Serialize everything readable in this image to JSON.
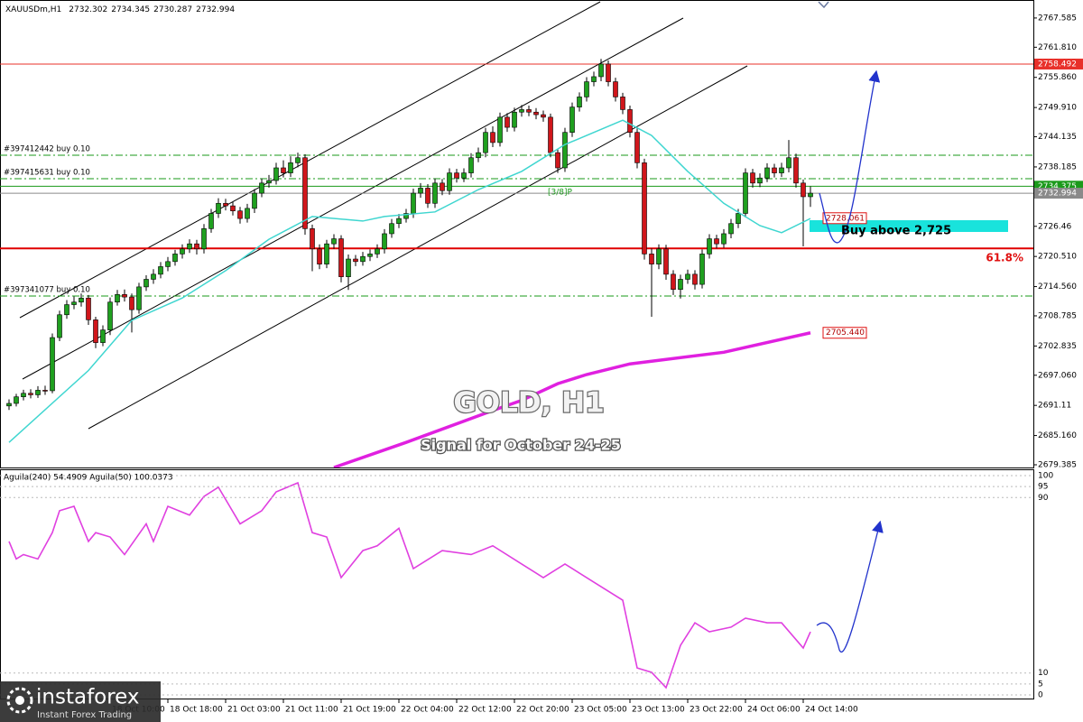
{
  "chart_data": {
    "type": "candlestick",
    "symbol": "XAUUSDm,H1",
    "title": "GOLD, H1",
    "subtitle": "Signal for October 24-25",
    "annotations": [
      "[3/8]P",
      "Buy above 2,725",
      "61.8%"
    ],
    "watermark": {
      "brand": "instaforex",
      "tagline": "Instant Forex Trading"
    },
    "up_color": "#1fa01f",
    "down_color": "#d0161b",
    "ylim": [
      2678.85,
      2770.6
    ],
    "yticks": [
      2767.585,
      {
        "value": 2761.81,
        "label": "2761.810"
      },
      {
        "value": 2755.86,
        "label": "2755.860"
      },
      {
        "value": 2749.91,
        "label": "2749.910"
      },
      2744.135,
      2738.185,
      2726.46,
      {
        "value": 2720.51,
        "label": "2720.510"
      },
      {
        "value": 2714.56,
        "label": "2714.560"
      },
      2708.785,
      2702.835,
      {
        "value": 2697.06,
        "label": "2697.060"
      },
      2691.11,
      {
        "value": 2685.16,
        "label": "2685.160"
      },
      2679.385
    ],
    "xticks": [
      {
        "value": 14,
        "label": "18 Oct 10:00"
      },
      {
        "value": 22,
        "label": "18 Oct 18:00"
      },
      {
        "value": 30,
        "label": "21 Oct 03:00"
      },
      {
        "value": 38,
        "label": "21 Oct 11:00"
      },
      {
        "value": 46,
        "label": "21 Oct 19:00"
      },
      {
        "value": 54,
        "label": "22 Oct 04:00"
      },
      {
        "value": 62,
        "label": "22 Oct 12:00"
      },
      {
        "value": 70,
        "label": "22 Oct 20:00"
      },
      {
        "value": 78,
        "label": "23 Oct 05:00"
      },
      {
        "value": 86,
        "label": "23 Oct 13:00"
      },
      {
        "value": 94,
        "label": "23 Oct 22:00"
      },
      {
        "value": 102,
        "label": "24 Oct 06:00"
      },
      {
        "value": 110,
        "label": "24 Oct 14:00"
      }
    ],
    "open": [
      2691.0,
      2691.5,
      2692.8,
      2693.5,
      2693.2,
      2694.1,
      2694.0,
      2704.5,
      2709.0,
      2711.0,
      2711.5,
      2712.3,
      2708.0,
      2703.5,
      2706.0,
      2711.5,
      2713.0,
      2712.5,
      2710.0,
      2714.5,
      2716.0,
      2717.0,
      2718.5,
      2719.5,
      2721.0,
      2722.0,
      2723.0,
      2722.0,
      2726.0,
      2729.0,
      2731.0,
      2730.5,
      2729.5,
      2728.0,
      2730.0,
      2733.0,
      2735.0,
      2735.5,
      2738.0,
      2737.0,
      2739.0,
      2740.0,
      2726.0,
      2722.0,
      2719.0,
      2723.0,
      2724.0,
      2716.5,
      2720.0,
      2719.5,
      2720.5,
      2721.0,
      2722.0,
      2725.0,
      2727.0,
      2728.0,
      2729.0,
      2733.0,
      2734.0,
      2731.0,
      2735.0,
      2733.5,
      2737.0,
      2736.0,
      2737.0,
      2740.0,
      2741.0,
      2745.0,
      2743.0,
      2748.0,
      2746.0,
      2749.0,
      2749.5,
      2749.0,
      2748.5,
      2748.0,
      2741.0,
      2738.0,
      2745.0,
      2750.0,
      2752.0,
      2755.0,
      2756.0,
      2758.5,
      2755.0,
      2752.0,
      2749.5,
      2745.0,
      2739.0,
      2721.0,
      2719.0,
      2722.0,
      2717.0,
      2714.0,
      2716.0,
      2717.0,
      2715.0,
      2721.0,
      2724.0,
      2723.0,
      2725.0,
      2727.0,
      2729.0,
      2737.0,
      2735.0,
      2736.0,
      2738.0,
      2737.0,
      2738.0,
      2740.0,
      2735.0,
      2732.302
    ],
    "high": [
      2692.3,
      2693.4,
      2694.2,
      2694.3,
      2694.9,
      2695.0,
      2705.3,
      2709.8,
      2711.9,
      2712.6,
      2713.2,
      2712.9,
      2708.6,
      2706.9,
      2712.4,
      2713.9,
      2714.0,
      2713.2,
      2715.3,
      2716.8,
      2718.0,
      2719.4,
      2720.4,
      2721.8,
      2722.9,
      2723.9,
      2723.8,
      2726.9,
      2729.9,
      2732.0,
      2731.9,
      2731.3,
      2730.3,
      2730.9,
      2733.8,
      2735.9,
      2736.6,
      2739.0,
      2739.5,
      2740.3,
      2741.0,
      2740.7,
      2726.8,
      2722.9,
      2723.8,
      2724.9,
      2724.7,
      2720.9,
      2720.8,
      2721.4,
      2721.9,
      2722.9,
      2725.9,
      2727.9,
      2728.9,
      2729.9,
      2733.9,
      2735.0,
      2734.8,
      2735.9,
      2735.8,
      2737.9,
      2737.8,
      2737.9,
      2740.9,
      2742.0,
      2745.9,
      2746.2,
      2748.9,
      2748.8,
      2749.9,
      2750.4,
      2750.3,
      2749.8,
      2749.3,
      2748.7,
      2741.8,
      2745.9,
      2750.9,
      2752.9,
      2755.9,
      2757.0,
      2759.5,
      2759.2,
      2755.8,
      2752.8,
      2750.3,
      2745.8,
      2739.8,
      2722.1,
      2722.9,
      2722.8,
      2717.8,
      2716.9,
      2717.9,
      2717.8,
      2721.9,
      2724.9,
      2724.8,
      2725.9,
      2727.9,
      2729.9,
      2737.9,
      2737.8,
      2736.9,
      2738.9,
      2738.8,
      2739.0,
      2743.5,
      2740.8,
      2735.7,
      2734.345
    ],
    "low": [
      2690.2,
      2690.9,
      2692.1,
      2692.5,
      2692.6,
      2693.2,
      2693.5,
      2703.8,
      2708.2,
      2710.1,
      2710.6,
      2707.0,
      2702.4,
      2702.8,
      2705.0,
      2710.8,
      2711.6,
      2705.5,
      2709.2,
      2713.7,
      2715.1,
      2716.2,
      2717.6,
      2718.7,
      2720.1,
      2721.2,
      2720.9,
      2721.1,
      2725.2,
      2728.1,
      2729.6,
      2728.6,
      2727.0,
      2727.2,
      2729.1,
      2732.2,
      2734.1,
      2734.7,
      2736.1,
      2736.2,
      2738.1,
      2724.8,
      2717.6,
      2718.0,
      2718.2,
      2722.0,
      2715.4,
      2713.9,
      2718.6,
      2718.7,
      2719.6,
      2720.2,
      2721.1,
      2724.2,
      2726.1,
      2727.2,
      2728.1,
      2732.1,
      2730.1,
      2730.1,
      2732.6,
      2732.7,
      2735.1,
      2735.2,
      2736.1,
      2739.1,
      2740.1,
      2742.1,
      2742.2,
      2745.1,
      2745.2,
      2748.1,
      2748.2,
      2747.6,
      2747.1,
      2740.1,
      2737.0,
      2737.2,
      2744.1,
      2749.1,
      2751.1,
      2754.1,
      2755.1,
      2754.1,
      2751.1,
      2748.6,
      2744.0,
      2737.9,
      2719.9,
      2708.6,
      2718.0,
      2715.9,
      2712.9,
      2712.2,
      2715.1,
      2714.0,
      2714.2,
      2720.1,
      2722.1,
      2722.2,
      2724.1,
      2726.1,
      2728.2,
      2734.1,
      2734.2,
      2735.2,
      2736.1,
      2736.2,
      2737.1,
      2734.1,
      2722.5,
      2730.287
    ],
    "close": [
      2691.5,
      2692.8,
      2693.5,
      2693.2,
      2694.1,
      2694.0,
      2704.5,
      2709.0,
      2711.0,
      2711.5,
      2712.3,
      2708.0,
      2703.5,
      2706.0,
      2711.5,
      2713.0,
      2712.5,
      2710.0,
      2714.5,
      2716.0,
      2717.0,
      2718.5,
      2719.5,
      2721.0,
      2722.0,
      2723.0,
      2722.0,
      2726.0,
      2729.0,
      2731.0,
      2730.5,
      2729.5,
      2728.0,
      2730.0,
      2733.0,
      2735.0,
      2735.5,
      2738.0,
      2737.0,
      2739.0,
      2740.0,
      2726.0,
      2722.0,
      2719.0,
      2723.0,
      2724.0,
      2716.5,
      2720.0,
      2719.5,
      2720.5,
      2721.0,
      2722.0,
      2725.0,
      2727.0,
      2728.0,
      2729.0,
      2733.0,
      2734.0,
      2731.0,
      2735.0,
      2733.5,
      2737.0,
      2736.0,
      2737.0,
      2740.0,
      2741.0,
      2745.0,
      2743.0,
      2748.0,
      2746.0,
      2749.0,
      2749.5,
      2749.0,
      2748.5,
      2748.0,
      2741.0,
      2738.0,
      2745.0,
      2750.0,
      2752.0,
      2755.0,
      2756.0,
      2758.5,
      2755.0,
      2752.0,
      2749.5,
      2745.0,
      2739.0,
      2721.0,
      2719.0,
      2722.0,
      2717.0,
      2714.0,
      2716.0,
      2717.0,
      2715.0,
      2721.0,
      2724.0,
      2723.0,
      2725.0,
      2727.0,
      2729.0,
      2737.0,
      2735.0,
      2736.0,
      2738.0,
      2737.0,
      2738.0,
      2740.0,
      2735.0,
      2732.302,
      2732.994
    ],
    "lines": [
      {
        "color": "#3fd6d0",
        "width": 1.5,
        "x": [
          0,
          11,
          17,
          24,
          30,
          36,
          42,
          49,
          52,
          59,
          65,
          71,
          77,
          85,
          89,
          94,
          99,
          104,
          107,
          111
        ],
        "values": [
          2683.8,
          2698.0,
          2707.9,
          2712.3,
          2717.7,
          2723.9,
          2728.4,
          2727.5,
          2728.4,
          2729.3,
          2733.7,
          2737.3,
          2742.6,
          2747.4,
          2744.4,
          2737.3,
          2731.0,
          2726.6,
          2725.2,
          2728.0
        ]
      },
      {
        "color": "#e020e0",
        "width": 3.5,
        "x": [
          45,
          55,
          67,
          71,
          76,
          80,
          86,
          99,
          111
        ],
        "values": [
          2678.85,
          2683.8,
          2690.1,
          2692.1,
          2695.4,
          2697.2,
          2699.3,
          2701.6,
          2705.44
        ]
      }
    ],
    "hlines": [
      {
        "value": 2758.492,
        "color": "#e8302a",
        "width": 1,
        "dash": "solid",
        "axis_label": "2758.492"
      },
      {
        "value": 2722.1,
        "color": "#e00000",
        "width": 2,
        "dash": "solid"
      },
      {
        "value": 2740.5,
        "color": "#1a9a1a",
        "width": 1,
        "dash": "dashdot",
        "text": "#397412442 buy 0.10"
      },
      {
        "value": 2735.85,
        "color": "#1a9a1a",
        "width": 1,
        "dash": "dashdot",
        "text": "#397415631 buy 0.10"
      },
      {
        "value": 2734.375,
        "color": "#1a9a1a",
        "width": 1,
        "dash": "solid",
        "axis_label": "2734.375"
      },
      {
        "value": 2732.994,
        "color": "#8a8a8a",
        "width": 1,
        "dash": "solid",
        "axis_label": "2732.994"
      },
      {
        "value": 2712.7,
        "color": "#1a9a1a",
        "width": 1,
        "dash": "dashdot",
        "text": "#397341077 buy 0.10"
      }
    ],
    "price_tags": [
      {
        "value": 2728.061,
        "label": "2728.061"
      },
      {
        "value": 2705.44,
        "label": "2705.440"
      }
    ],
    "indicator": {
      "title": "Aguila(240) 54.4909 Aguila(50) 100.0373",
      "color": "#e040e0",
      "ylim": [
        0,
        100
      ],
      "yticks": [
        100,
        95,
        90,
        10,
        5,
        0
      ],
      "x": [
        0,
        1,
        2,
        4,
        6,
        7,
        9,
        11,
        12,
        14,
        16,
        19,
        20,
        22,
        25,
        27,
        29,
        32,
        35,
        37,
        40,
        42,
        44,
        46,
        49,
        51,
        54,
        56,
        60,
        64,
        67,
        71,
        74,
        77,
        81,
        85,
        87,
        89,
        91,
        93,
        95,
        97,
        100,
        102,
        105,
        107,
        110,
        111
      ],
      "values": [
        70,
        62,
        64,
        62,
        74,
        84,
        86,
        70,
        74,
        72,
        64,
        78,
        70,
        86,
        82,
        90.5,
        94.7,
        78,
        84,
        92.6,
        96.7,
        74,
        72,
        53.5,
        65.8,
        68,
        76,
        57.6,
        65.8,
        64,
        68,
        59.7,
        53.5,
        59.7,
        51.4,
        43.2,
        12.3,
        10.3,
        3.3,
        22.6,
        32.9,
        28.8,
        30.9,
        35,
        32.9,
        32.9,
        21.4,
        28.8
      ]
    }
  }
}
